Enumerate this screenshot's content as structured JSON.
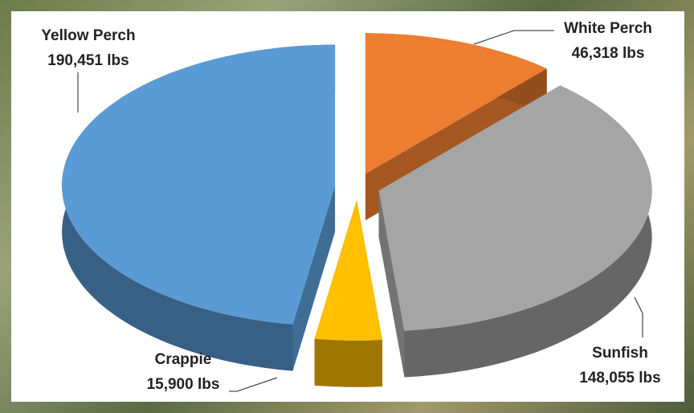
{
  "chart_data": {
    "type": "pie",
    "categories": [
      "White Perch",
      "Sunfish",
      "Crappie",
      "Yellow Perch"
    ],
    "values": [
      46318,
      148055,
      15900,
      190451
    ],
    "value_labels": [
      "46,318 lbs",
      "148,055 lbs",
      "15,900 lbs",
      "190,451 lbs"
    ],
    "colors": [
      "#ed7d31",
      "#a5a5a5",
      "#ffc000",
      "#5b9bd5"
    ]
  }
}
